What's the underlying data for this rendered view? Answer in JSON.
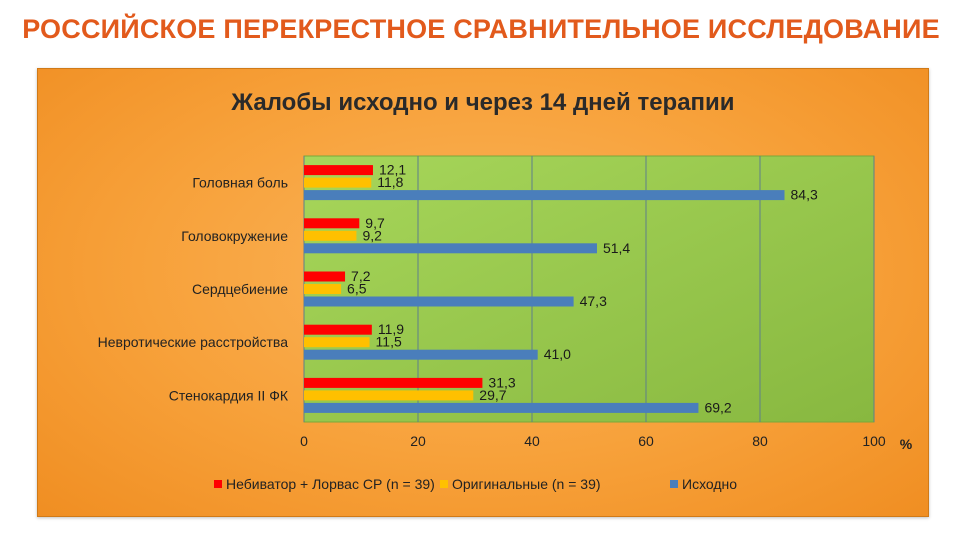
{
  "page": {
    "title": "РОССИЙСКОЕ ПЕРЕКРЕСТНОЕ СРАВНИТЕЛЬНОЕ ИССЛЕДОВАНИЕ"
  },
  "chart_data": {
    "type": "bar",
    "orientation": "horizontal",
    "title": "Жалобы исходно и через 14 дней терапии",
    "xlabel": "%",
    "ylabel": "",
    "xlim": [
      0,
      100
    ],
    "ticks": [
      "0",
      "20",
      "40",
      "60",
      "80",
      "100"
    ],
    "categories": [
      "Головная боль",
      "Головокружение",
      "Сердцебиение",
      "Невротические расстройства",
      "Стенокардия II ФК"
    ],
    "series": [
      {
        "name": "Небиватор + Лорвас СР (n = 39)",
        "color": "#ff0000",
        "values": [
          12.1,
          9.7,
          7.2,
          11.9,
          31.3
        ],
        "labels": [
          "12,1",
          "9,7",
          "7,2",
          "11,9",
          "31,3"
        ]
      },
      {
        "name": "Оригинальные (n = 39)",
        "color": "#ffc000",
        "values": [
          11.8,
          9.2,
          6.5,
          11.5,
          29.7
        ],
        "labels": [
          "11,8",
          "9,2",
          "6,5",
          "11,5",
          "29,7"
        ]
      },
      {
        "name": "Исходно",
        "color": "#4a7ebb",
        "values": [
          84.3,
          51.4,
          47.3,
          41.0,
          69.2
        ],
        "labels": [
          "84,3",
          "51,4",
          "47,3",
          "41,0",
          "69,2"
        ]
      }
    ],
    "grid": true,
    "legend": "bottom",
    "plot_background": "#9bcc4e",
    "panel_background": "#f7a13a"
  }
}
